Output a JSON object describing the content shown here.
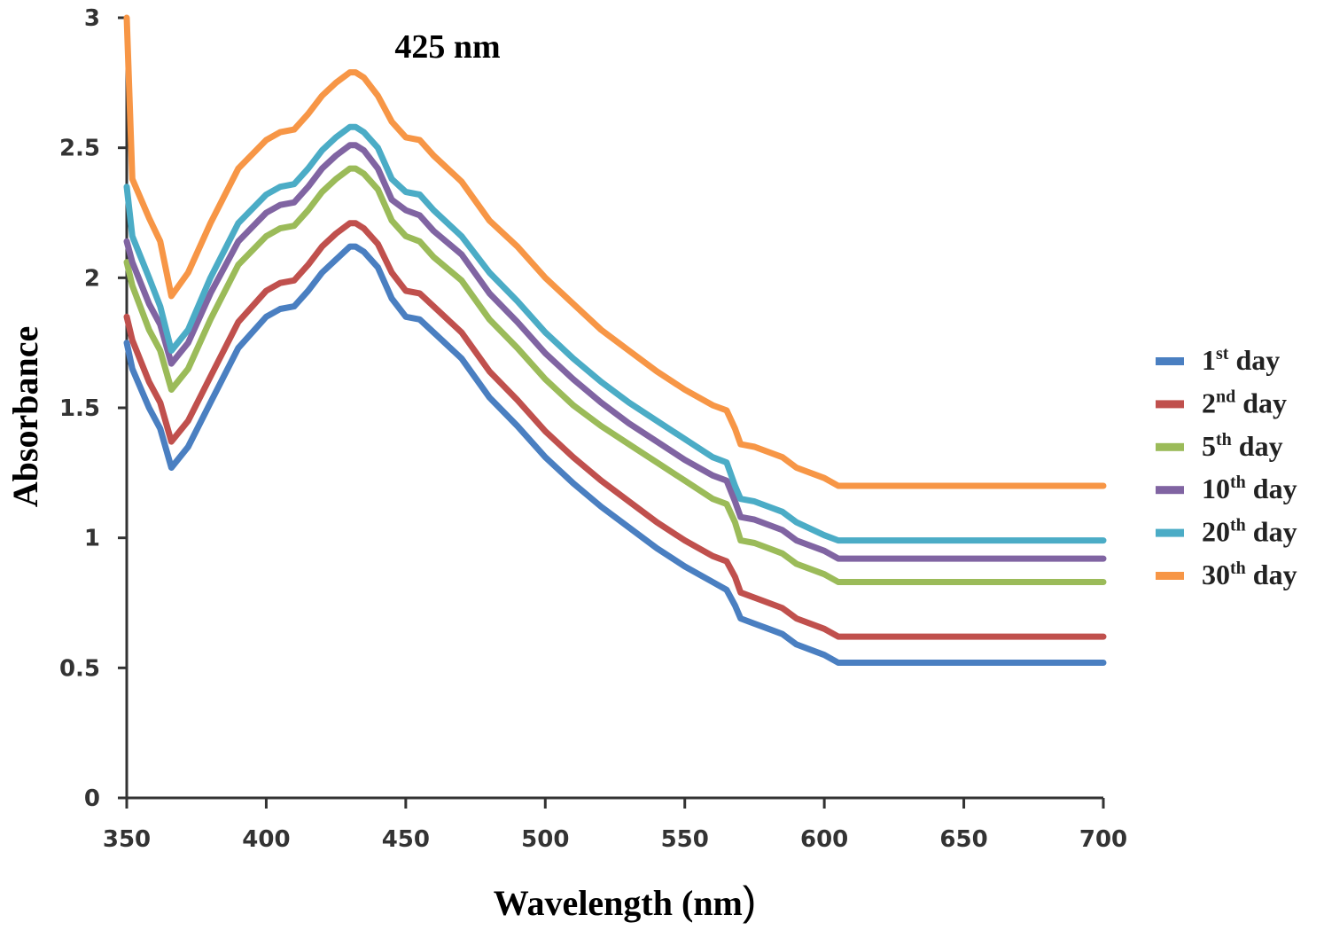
{
  "chart_data": {
    "type": "line",
    "title": "",
    "annotation": "425 nm",
    "xlabel": "Wavelength (nm",
    "xlabel_paren": ")",
    "ylabel": "Absorbance",
    "xlim": [
      350,
      700
    ],
    "ylim": [
      0,
      3
    ],
    "xticks": [
      350,
      400,
      450,
      500,
      550,
      600,
      650,
      700
    ],
    "yticks": [
      0,
      0.5,
      1,
      1.5,
      2,
      2.5,
      3
    ],
    "ytick_labels": [
      "0",
      "0.5",
      "1",
      "1.5",
      "2",
      "2.5",
      "3"
    ],
    "legend_position": "right",
    "x": [
      350,
      352,
      358,
      362,
      366,
      372,
      380,
      390,
      400,
      405,
      410,
      415,
      420,
      425,
      430,
      432,
      435,
      440,
      445,
      450,
      455,
      460,
      470,
      480,
      490,
      500,
      510,
      520,
      530,
      540,
      550,
      560,
      565,
      568,
      570,
      575,
      580,
      585,
      590,
      600,
      605,
      700
    ],
    "series": [
      {
        "name_num": "1",
        "name_sup": "st",
        "name_rest": " day",
        "color": "#4a7fc1",
        "values": [
          1.75,
          1.65,
          1.5,
          1.42,
          1.27,
          1.35,
          1.52,
          1.73,
          1.85,
          1.88,
          1.89,
          1.95,
          2.02,
          2.07,
          2.12,
          2.12,
          2.1,
          2.04,
          1.92,
          1.85,
          1.84,
          1.79,
          1.69,
          1.54,
          1.43,
          1.31,
          1.21,
          1.12,
          1.04,
          0.96,
          0.89,
          0.83,
          0.8,
          0.74,
          0.69,
          0.67,
          0.65,
          0.63,
          0.59,
          0.55,
          0.52,
          0.52
        ]
      },
      {
        "name_num": "2",
        "name_sup": "nd",
        "name_rest": " day",
        "color": "#c0504d",
        "values": [
          1.85,
          1.76,
          1.6,
          1.52,
          1.37,
          1.45,
          1.62,
          1.83,
          1.95,
          1.98,
          1.99,
          2.05,
          2.12,
          2.17,
          2.21,
          2.21,
          2.19,
          2.13,
          2.02,
          1.95,
          1.94,
          1.89,
          1.79,
          1.64,
          1.53,
          1.41,
          1.31,
          1.22,
          1.14,
          1.06,
          0.99,
          0.93,
          0.91,
          0.85,
          0.79,
          0.77,
          0.75,
          0.73,
          0.69,
          0.65,
          0.62,
          0.62
        ]
      },
      {
        "name_num": "5",
        "name_sup": "th",
        "name_rest": " day",
        "color": "#9bbb59",
        "values": [
          2.06,
          1.97,
          1.8,
          1.72,
          1.57,
          1.65,
          1.84,
          2.05,
          2.16,
          2.19,
          2.2,
          2.26,
          2.33,
          2.38,
          2.42,
          2.42,
          2.4,
          2.34,
          2.22,
          2.16,
          2.14,
          2.08,
          1.99,
          1.84,
          1.73,
          1.61,
          1.51,
          1.43,
          1.36,
          1.29,
          1.22,
          1.15,
          1.13,
          1.06,
          0.99,
          0.98,
          0.96,
          0.94,
          0.9,
          0.86,
          0.83,
          0.83
        ]
      },
      {
        "name_num": "10",
        "name_sup": "th",
        "name_rest": " day",
        "color": "#8064a2",
        "values": [
          2.14,
          2.06,
          1.9,
          1.82,
          1.67,
          1.75,
          1.94,
          2.14,
          2.25,
          2.28,
          2.29,
          2.35,
          2.42,
          2.47,
          2.51,
          2.51,
          2.49,
          2.42,
          2.3,
          2.26,
          2.24,
          2.18,
          2.09,
          1.94,
          1.83,
          1.71,
          1.61,
          1.52,
          1.44,
          1.37,
          1.3,
          1.24,
          1.22,
          1.14,
          1.08,
          1.07,
          1.05,
          1.03,
          0.99,
          0.95,
          0.92,
          0.92
        ]
      },
      {
        "name_num": "20",
        "name_sup": "th",
        "name_rest": " day",
        "color": "#4bacc6",
        "values": [
          2.35,
          2.16,
          2.0,
          1.89,
          1.72,
          1.8,
          2.0,
          2.21,
          2.32,
          2.35,
          2.36,
          2.42,
          2.49,
          2.54,
          2.58,
          2.58,
          2.56,
          2.5,
          2.38,
          2.33,
          2.32,
          2.26,
          2.16,
          2.02,
          1.91,
          1.79,
          1.69,
          1.6,
          1.52,
          1.45,
          1.38,
          1.31,
          1.29,
          1.2,
          1.15,
          1.14,
          1.12,
          1.1,
          1.06,
          1.01,
          0.99,
          0.99
        ]
      },
      {
        "name_num": "30",
        "name_sup": "th",
        "name_rest": " day",
        "color": "#f79646",
        "values": [
          3.0,
          2.38,
          2.23,
          2.14,
          1.93,
          2.02,
          2.21,
          2.42,
          2.53,
          2.56,
          2.57,
          2.63,
          2.7,
          2.75,
          2.79,
          2.79,
          2.77,
          2.7,
          2.6,
          2.54,
          2.53,
          2.47,
          2.37,
          2.22,
          2.12,
          2.0,
          1.9,
          1.8,
          1.72,
          1.64,
          1.57,
          1.51,
          1.49,
          1.42,
          1.36,
          1.35,
          1.33,
          1.31,
          1.27,
          1.23,
          1.2,
          1.2
        ]
      }
    ]
  }
}
